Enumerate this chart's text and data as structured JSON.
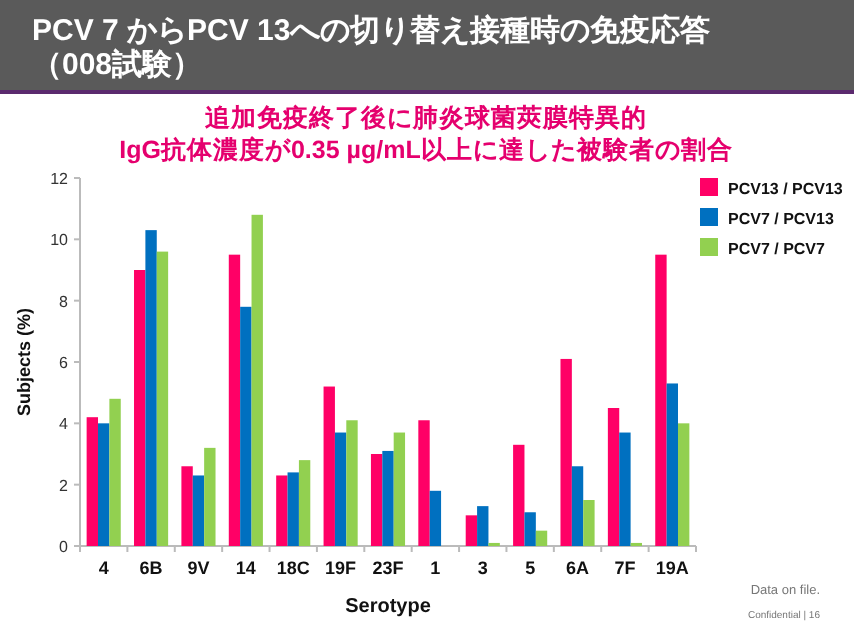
{
  "chart_data": {
    "type": "bar",
    "title": "PCV 7 からPCV 13への切り替え接種時の免疫応答（008試験）",
    "subtitle": "追加免疫終了後に肺炎球菌莢膜特異的IgG抗体濃度が0.35 µg/mL以上に達した被験者の割合",
    "xlabel": "Serotype",
    "ylabel": "Subjects (%)",
    "categories": [
      "4",
      "6B",
      "9V",
      "14",
      "18C",
      "19F",
      "23F",
      "1",
      "3",
      "5",
      "6A",
      "7F",
      "19A"
    ],
    "series": [
      {
        "name": "PCV13 / PCV13",
        "color": "#ff0066",
        "values": [
          4.2,
          9.0,
          2.6,
          9.5,
          2.3,
          5.2,
          3.0,
          4.1,
          1.0,
          3.3,
          6.1,
          4.5,
          9.5
        ]
      },
      {
        "name": "PCV7 / PCV13",
        "color": "#0070c0",
        "values": [
          4.0,
          10.3,
          2.3,
          7.8,
          2.4,
          3.7,
          3.1,
          1.8,
          1.3,
          1.1,
          2.6,
          3.7,
          5.3
        ]
      },
      {
        "name": "PCV7 / PCV7",
        "color": "#92d050",
        "values": [
          4.8,
          9.6,
          3.2,
          10.8,
          2.8,
          4.1,
          3.7,
          0,
          0.1,
          0.5,
          1.5,
          0.1,
          4.0
        ]
      }
    ],
    "ylim": [
      0,
      12
    ],
    "yticks": [
      0,
      2,
      4,
      6,
      8,
      10,
      12
    ],
    "grid": false,
    "legend": "top right",
    "annotations": [
      "Data on file.",
      "Confidential | 16"
    ]
  }
}
